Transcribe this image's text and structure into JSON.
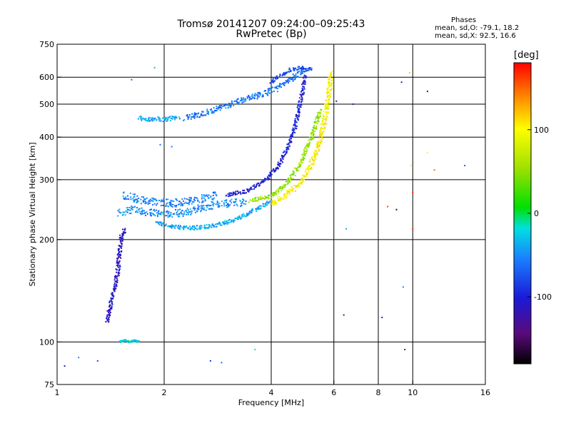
{
  "title": "Tromsø 20141207 09:24:00–09:25:43",
  "subtitle": "RwPretec (Bp)",
  "stats": {
    "header": "Phases",
    "line_o": "mean, sd,O: -79.1, 18.2",
    "line_x": "mean, sd,X:  92.5, 16.6"
  },
  "colorbar": {
    "unit": "[deg]",
    "range": [
      -180,
      180
    ],
    "ticks": [
      "100",
      "0",
      "-100"
    ],
    "tick_values": [
      100,
      0,
      -100
    ]
  },
  "chart_data": {
    "type": "scatter",
    "title": "Tromsø 20141207 09:24:00–09:25:43",
    "subtitle": "RwPretec (Bp)",
    "xlabel": "Frequency [MHz]",
    "ylabel": "Stationary phase Virtual Height [km]",
    "xscale": "log",
    "yscale": "log",
    "xlim": [
      1,
      16
    ],
    "ylim": [
      75,
      750
    ],
    "xticks": [
      1,
      2,
      4,
      6,
      8,
      10,
      16
    ],
    "xtick_labels": [
      "1",
      "2",
      "4",
      "6",
      "8",
      "10",
      "16"
    ],
    "yticks": [
      75,
      100,
      200,
      300,
      400,
      500,
      600,
      750
    ],
    "ytick_labels": [
      "75",
      "100",
      "200",
      "300",
      "400",
      "500",
      "600",
      "750"
    ],
    "grid": true,
    "color_variable": "phase [deg]",
    "traces": [
      {
        "f": [
          1.38,
          1.42,
          1.45,
          1.48,
          1.5,
          1.52,
          1.55
        ],
        "h": [
          115,
          130,
          145,
          160,
          185,
          205,
          215
        ],
        "phase": -110,
        "spread": 0.02
      },
      {
        "f": [
          1.5,
          1.6,
          1.8,
          2.0,
          2.3,
          2.6,
          3.0,
          3.4
        ],
        "h": [
          240,
          245,
          240,
          238,
          240,
          250,
          255,
          258
        ],
        "phase": -50,
        "spread": 0.04
      },
      {
        "f": [
          1.55,
          1.7,
          1.9,
          2.1,
          2.4,
          2.8
        ],
        "h": [
          270,
          262,
          258,
          255,
          260,
          270
        ],
        "phase": -55,
        "spread": 0.04
      },
      {
        "f": [
          1.9,
          2.1,
          2.4,
          2.8,
          3.2,
          3.6,
          4.0
        ],
        "h": [
          225,
          218,
          216,
          220,
          230,
          245,
          260
        ],
        "phase": -40,
        "spread": 0.02
      },
      {
        "f": [
          3.0,
          3.4,
          3.8,
          4.2,
          4.5,
          4.7,
          4.85,
          5.0
        ],
        "h": [
          270,
          278,
          295,
          330,
          380,
          440,
          520,
          610
        ],
        "phase": -100,
        "spread": 0.02
      },
      {
        "f": [
          4.0,
          4.4,
          4.8,
          5.1,
          5.4,
          5.6,
          5.8,
          5.9
        ],
        "h": [
          255,
          270,
          290,
          320,
          370,
          430,
          520,
          620
        ],
        "phase": 100,
        "spread": 0.025
      },
      {
        "f": [
          3.5,
          4.0,
          4.4,
          4.8,
          5.2,
          5.5
        ],
        "h": [
          260,
          268,
          290,
          330,
          400,
          480
        ],
        "phase": 50,
        "spread": 0.02
      },
      {
        "f": [
          1.7,
          1.85,
          2.0,
          2.2
        ],
        "h": [
          455,
          450,
          452,
          458
        ],
        "phase": -40,
        "spread": 0.025
      },
      {
        "f": [
          2.3,
          2.6,
          3.0,
          3.4,
          3.8,
          4.2,
          4.6,
          5.0
        ],
        "h": [
          455,
          470,
          495,
          520,
          535,
          560,
          600,
          630
        ],
        "phase": -60,
        "spread": 0.03
      },
      {
        "f": [
          4.0,
          4.3,
          4.6,
          4.9,
          5.2
        ],
        "h": [
          580,
          610,
          635,
          640,
          630
        ],
        "phase": -80,
        "spread": 0.02
      },
      {
        "f": [
          1.5,
          1.55,
          1.6,
          1.65,
          1.7
        ],
        "h": [
          100,
          101,
          100,
          101,
          100
        ],
        "phase": -20,
        "spread": 0.01
      }
    ],
    "points": [
      {
        "f": 1.05,
        "h": 85,
        "phase": -110
      },
      {
        "f": 1.15,
        "h": 90,
        "phase": -50
      },
      {
        "f": 1.3,
        "h": 88,
        "phase": -80
      },
      {
        "f": 1.62,
        "h": 590,
        "phase": -70
      },
      {
        "f": 1.88,
        "h": 640,
        "phase": -30
      },
      {
        "f": 1.95,
        "h": 380,
        "phase": -60
      },
      {
        "f": 2.1,
        "h": 375,
        "phase": -60
      },
      {
        "f": 2.7,
        "h": 88,
        "phase": -90
      },
      {
        "f": 2.9,
        "h": 87,
        "phase": -60
      },
      {
        "f": 3.6,
        "h": 95,
        "phase": -20
      },
      {
        "f": 6.1,
        "h": 510,
        "phase": -100
      },
      {
        "f": 6.3,
        "h": 300,
        "phase": 140
      },
      {
        "f": 6.4,
        "h": 120,
        "phase": -130
      },
      {
        "f": 6.5,
        "h": 215,
        "phase": -40
      },
      {
        "f": 6.8,
        "h": 500,
        "phase": -120
      },
      {
        "f": 8.2,
        "h": 118,
        "phase": -120
      },
      {
        "f": 8.5,
        "h": 250,
        "phase": 160
      },
      {
        "f": 9.0,
        "h": 245,
        "phase": -160
      },
      {
        "f": 9.3,
        "h": 580,
        "phase": -130
      },
      {
        "f": 9.4,
        "h": 145,
        "phase": -50
      },
      {
        "f": 9.5,
        "h": 95,
        "phase": -140
      },
      {
        "f": 9.8,
        "h": 618,
        "phase": 120
      },
      {
        "f": 9.9,
        "h": 330,
        "phase": 100
      },
      {
        "f": 10.0,
        "h": 275,
        "phase": 170
      },
      {
        "f": 10.0,
        "h": 215,
        "phase": 170
      },
      {
        "f": 11.0,
        "h": 360,
        "phase": 100
      },
      {
        "f": 11.0,
        "h": 545,
        "phase": -120
      },
      {
        "f": 11.5,
        "h": 320,
        "phase": 150
      },
      {
        "f": 14.0,
        "h": 330,
        "phase": -70
      }
    ]
  }
}
